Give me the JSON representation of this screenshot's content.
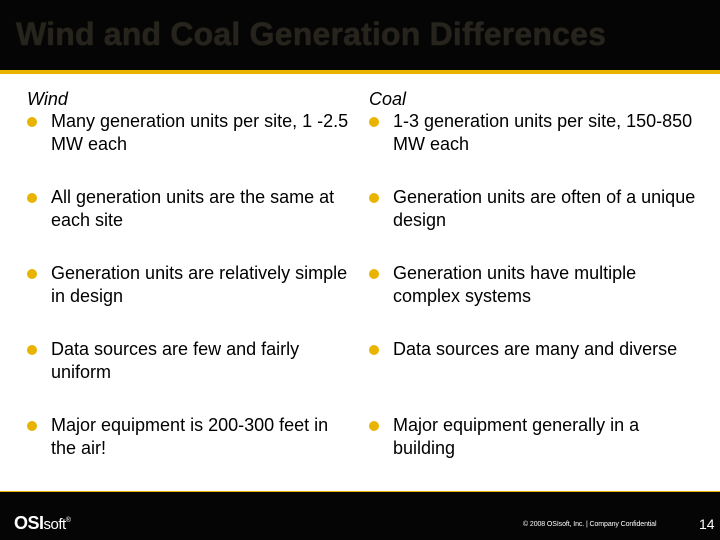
{
  "slide": {
    "title": "Wind and Coal Generation Differences",
    "accent_color": "#e8b400"
  },
  "wind": {
    "heading": "Wind",
    "items": [
      {
        "text": "Many generation units per site, 1 -2.5 MW each"
      },
      {
        "text": "All generation units are the same at each site"
      },
      {
        "text": "Generation units are relatively simple in design"
      },
      {
        "text": "Data sources are few and fairly uniform"
      },
      {
        "text": "Major equipment is 200-300 feet in the air!"
      }
    ]
  },
  "coal": {
    "heading": "Coal",
    "items": [
      {
        "text": "1-3 generation units per site, 150-850 MW each"
      },
      {
        "text": "Generation units are often of a unique design"
      },
      {
        "text": "Generation units have multiple complex systems"
      },
      {
        "text": "Data sources are many and diverse"
      },
      {
        "text": "Major equipment generally  in a building"
      }
    ]
  },
  "footer": {
    "logo_bold": "OSI",
    "logo_light": "soft",
    "logo_mark": "®",
    "copyright": "© 2008 OSIsoft, Inc.  |  Company Confidential",
    "page_number": "14"
  }
}
